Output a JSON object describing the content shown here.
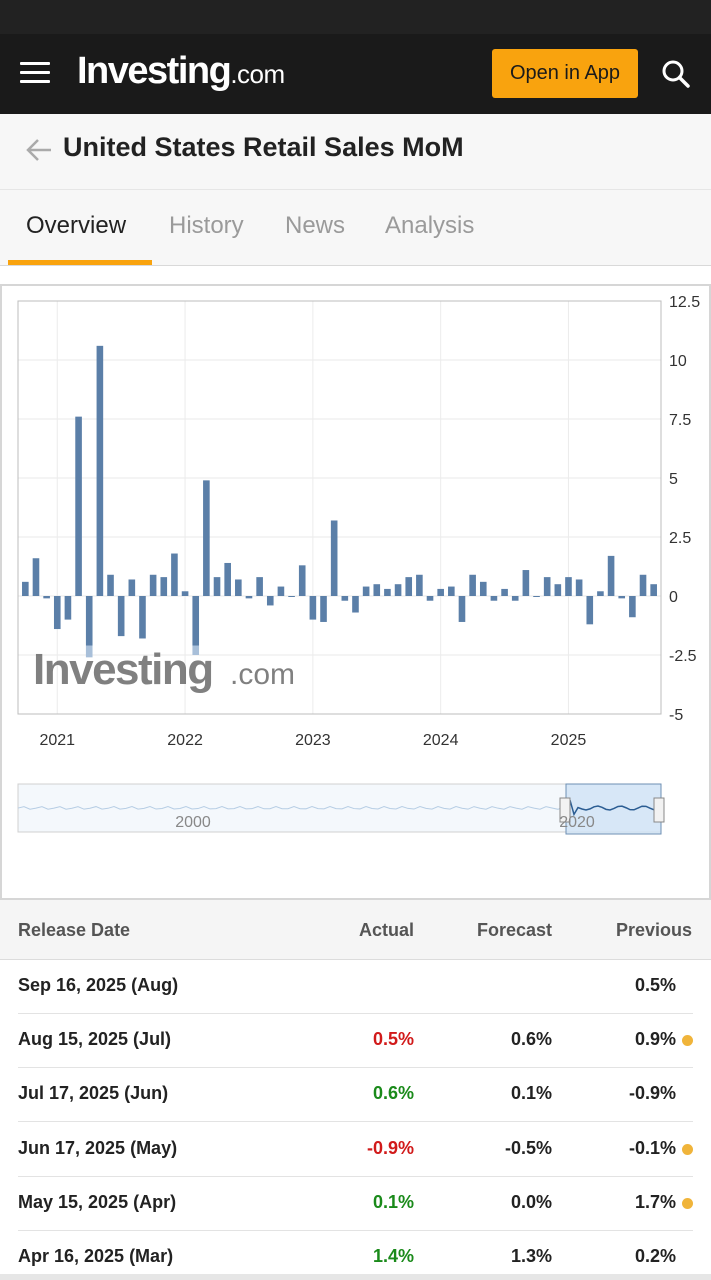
{
  "header": {
    "brand": "Investing",
    "brand_suffix": ".com",
    "open_app_label": "Open in App"
  },
  "page": {
    "title": "United States Retail Sales MoM"
  },
  "tabs": [
    {
      "label": "Overview",
      "active": true
    },
    {
      "label": "History",
      "active": false
    },
    {
      "label": "News",
      "active": false
    },
    {
      "label": "Analysis",
      "active": false
    }
  ],
  "colors": {
    "accent": "#f9a30e",
    "bar": "#5b7fa8",
    "bar_revision": "#a8bfd9",
    "positive": "#1a8a1a",
    "negative": "#d11a1a",
    "revision_dot": "#f0b43a"
  },
  "chart_data": {
    "type": "bar",
    "ylim": [
      -5,
      12.5
    ],
    "y_ticks": [
      "12.5",
      "10",
      "7.5",
      "5",
      "2.5",
      "0",
      "-2.5",
      "-5"
    ],
    "x_ticks": [
      "2021",
      "2022",
      "2023",
      "2024",
      "2025"
    ],
    "watermark_brand": "Investing",
    "watermark_suffix": ".com",
    "navigator_labels": [
      "2000",
      "2020"
    ],
    "grid": true,
    "series": [
      {
        "values": [
          0.6,
          1.6,
          -0.1,
          -1.4,
          -1.0,
          7.6,
          -2.1,
          10.6,
          0.9,
          -1.7,
          0.7,
          -1.8,
          0.9,
          0.8,
          1.8,
          0.2,
          -2.1,
          4.9,
          0.8,
          1.4,
          0.7,
          -0.1,
          0.8,
          -0.4,
          0.4,
          0.0,
          1.3,
          -1.0,
          -1.1,
          3.2,
          -0.2,
          -0.7,
          0.4,
          0.5,
          0.3,
          0.5,
          0.8,
          0.9,
          -0.2,
          0.3,
          0.4,
          -1.1,
          0.9,
          0.6,
          -0.2,
          0.3,
          -0.2,
          1.1,
          0.0,
          0.8,
          0.5,
          0.8,
          0.7,
          -1.2,
          0.2,
          1.7,
          -0.1,
          -0.9,
          0.9,
          0.5
        ],
        "revised_values": [
          null,
          null,
          null,
          null,
          null,
          null,
          -2.6,
          null,
          null,
          null,
          null,
          null,
          null,
          null,
          null,
          null,
          -2.5,
          null,
          null,
          null,
          null,
          null,
          null,
          null,
          null,
          null,
          null,
          null,
          null,
          null,
          null,
          null,
          null,
          null,
          null,
          null,
          null,
          null,
          null,
          null,
          null,
          null,
          null,
          null,
          null,
          null,
          null,
          null,
          null,
          null,
          null,
          null,
          null,
          null,
          null,
          null,
          null,
          null,
          null,
          null
        ]
      }
    ]
  },
  "table": {
    "headers": {
      "release_date": "Release Date",
      "actual": "Actual",
      "forecast": "Forecast",
      "previous": "Previous"
    },
    "rows": [
      {
        "date": "Sep 16, 2025 (Aug)",
        "actual": "",
        "actual_trend": "",
        "forecast": "",
        "previous": "0.5%",
        "revised": false
      },
      {
        "date": "Aug 15, 2025 (Jul)",
        "actual": "0.5%",
        "actual_trend": "neg",
        "forecast": "0.6%",
        "previous": "0.9%",
        "revised": true
      },
      {
        "date": "Jul 17, 2025 (Jun)",
        "actual": "0.6%",
        "actual_trend": "pos",
        "forecast": "0.1%",
        "previous": "-0.9%",
        "revised": false
      },
      {
        "date": "Jun 17, 2025 (May)",
        "actual": "-0.9%",
        "actual_trend": "neg",
        "forecast": "-0.5%",
        "previous": "-0.1%",
        "revised": true
      },
      {
        "date": "May 15, 2025 (Apr)",
        "actual": "0.1%",
        "actual_trend": "pos",
        "forecast": "0.0%",
        "previous": "1.7%",
        "revised": true
      },
      {
        "date": "Apr 16, 2025 (Mar)",
        "actual": "1.4%",
        "actual_trend": "pos",
        "forecast": "1.3%",
        "previous": "0.2%",
        "revised": false
      }
    ]
  }
}
